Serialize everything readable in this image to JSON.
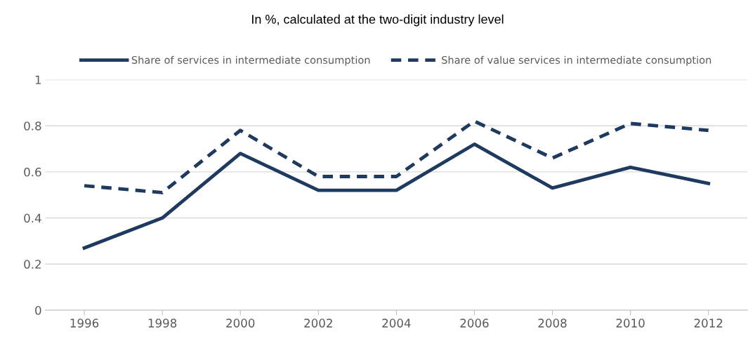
{
  "chart_data": {
    "type": "line",
    "title": "In %, calculated at the two-digit industry level",
    "categories": [
      "1996",
      "1998",
      "2000",
      "2002",
      "2004",
      "2006",
      "2008",
      "2010",
      "2012"
    ],
    "series": [
      {
        "name": "Share of services in intermediate consumption",
        "color": "#1f3a5f",
        "line_style": "solid",
        "values": [
          0.27,
          0.4,
          0.68,
          0.52,
          0.52,
          0.72,
          0.53,
          0.62,
          0.55
        ]
      },
      {
        "name": "Share of value services in intermediate consumption",
        "color": "#1f3a5f",
        "line_style": "dashed",
        "values": [
          0.54,
          0.51,
          0.78,
          0.58,
          0.58,
          0.82,
          0.66,
          0.81,
          0.78
        ]
      }
    ],
    "ylim": [
      0,
      1
    ],
    "yticks": [
      0,
      0.2,
      0.4,
      0.6,
      0.8,
      1
    ],
    "grid": "y",
    "legend": "top",
    "marker": "none"
  }
}
